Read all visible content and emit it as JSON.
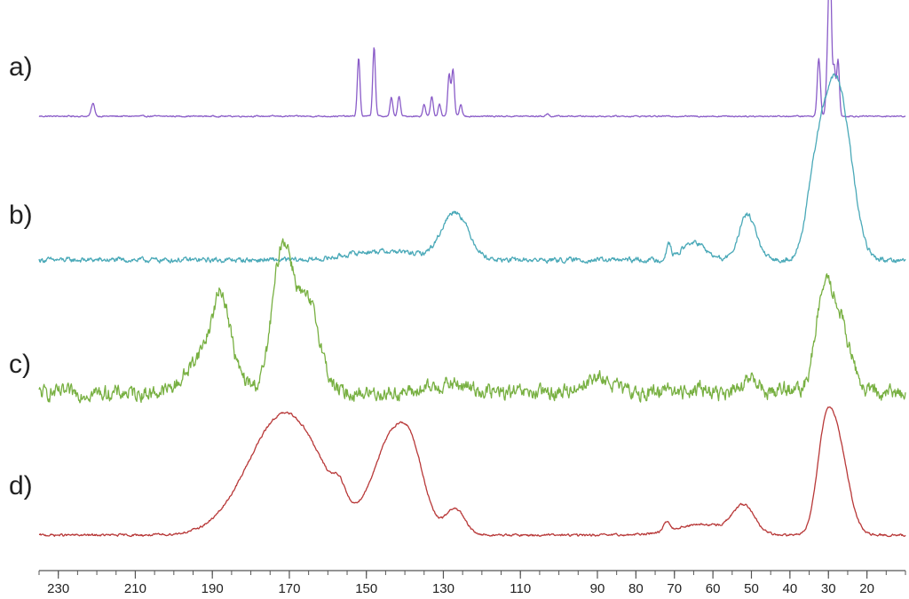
{
  "chart_data": {
    "type": "line",
    "title": "",
    "xlabel": "",
    "ylabel": "",
    "xlim": [
      235,
      10
    ],
    "x_reversed": true,
    "y_axis_shown": false,
    "grid": false,
    "legend": "none",
    "x_ticks": [
      230,
      210,
      190,
      170,
      150,
      130,
      110,
      90,
      80,
      70,
      60,
      50,
      40,
      30,
      20
    ],
    "baseline_noise": {
      "a": 0.01,
      "b": 0.03,
      "c": 0.09,
      "d": 0.015
    },
    "series": [
      {
        "label": "a)",
        "color": "#8a5cc8",
        "peaks": [
          {
            "center": 221,
            "height": 0.11,
            "width": 0.45
          },
          {
            "center": 152,
            "height": 0.5,
            "width": 0.35
          },
          {
            "center": 148,
            "height": 0.6,
            "width": 0.35
          },
          {
            "center": 143.5,
            "height": 0.16,
            "width": 0.35
          },
          {
            "center": 141.5,
            "height": 0.17,
            "width": 0.35
          },
          {
            "center": 135,
            "height": 0.1,
            "width": 0.35
          },
          {
            "center": 133,
            "height": 0.17,
            "width": 0.35
          },
          {
            "center": 131,
            "height": 0.11,
            "width": 0.35
          },
          {
            "center": 128.5,
            "height": 0.36,
            "width": 0.35
          },
          {
            "center": 127.5,
            "height": 0.4,
            "width": 0.35
          },
          {
            "center": 125.5,
            "height": 0.1,
            "width": 0.35
          },
          {
            "center": 103,
            "height": 0.02,
            "width": 0.4
          },
          {
            "center": 32.5,
            "height": 0.5,
            "width": 0.4
          },
          {
            "center": 30,
            "height": 0.7,
            "width": 0.45
          },
          {
            "center": 29.5,
            "height": 1.0,
            "width": 0.35
          },
          {
            "center": 28.5,
            "height": 0.42,
            "width": 0.35
          },
          {
            "center": 27.5,
            "height": 0.48,
            "width": 0.35
          }
        ]
      },
      {
        "label": "b)",
        "color": "#4aa9b8",
        "peaks": [
          {
            "center": 150,
            "height": 0.05,
            "width": 6
          },
          {
            "center": 140,
            "height": 0.04,
            "width": 5
          },
          {
            "center": 127,
            "height": 0.33,
            "width": 3.5
          },
          {
            "center": 71.5,
            "height": 0.1,
            "width": 0.6
          },
          {
            "center": 65,
            "height": 0.12,
            "width": 3
          },
          {
            "center": 51,
            "height": 0.31,
            "width": 2.2
          },
          {
            "center": 33,
            "height": 0.62,
            "width": 2.5
          },
          {
            "center": 29,
            "height": 0.62,
            "width": 2.5
          },
          {
            "center": 26,
            "height": 0.75,
            "width": 3
          }
        ]
      },
      {
        "label": "c)",
        "color": "#78b042",
        "peaks": [
          {
            "center": 190,
            "height": 0.35,
            "width": 5
          },
          {
            "center": 187.5,
            "height": 0.38,
            "width": 2
          },
          {
            "center": 172,
            "height": 0.75,
            "width": 2.5
          },
          {
            "center": 168,
            "height": 0.45,
            "width": 4
          },
          {
            "center": 164,
            "height": 0.3,
            "width": 2.5
          },
          {
            "center": 128,
            "height": 0.06,
            "width": 5
          },
          {
            "center": 90,
            "height": 0.1,
            "width": 4
          },
          {
            "center": 72,
            "height": 0.06,
            "width": 1
          },
          {
            "center": 64,
            "height": 0.04,
            "width": 2
          },
          {
            "center": 50,
            "height": 0.1,
            "width": 1.8
          },
          {
            "center": 42,
            "height": 0.04,
            "width": 1.5
          },
          {
            "center": 31.5,
            "height": 0.5,
            "width": 2.2
          },
          {
            "center": 27.5,
            "height": 0.5,
            "width": 3
          }
        ]
      },
      {
        "label": "d)",
        "color": "#b83838",
        "peaks": [
          {
            "center": 171,
            "height": 0.93,
            "width": 9.5
          },
          {
            "center": 157,
            "height": 0.13,
            "width": 1.5
          },
          {
            "center": 144,
            "height": 0.65,
            "width": 4.5
          },
          {
            "center": 138,
            "height": 0.48,
            "width": 3.5
          },
          {
            "center": 127,
            "height": 0.2,
            "width": 2.5
          },
          {
            "center": 72,
            "height": 0.07,
            "width": 0.8
          },
          {
            "center": 63,
            "height": 0.08,
            "width": 7
          },
          {
            "center": 52,
            "height": 0.21,
            "width": 2.8
          },
          {
            "center": 31,
            "height": 0.6,
            "width": 2.2
          },
          {
            "center": 27.5,
            "height": 0.65,
            "width": 2.8
          }
        ]
      }
    ]
  }
}
